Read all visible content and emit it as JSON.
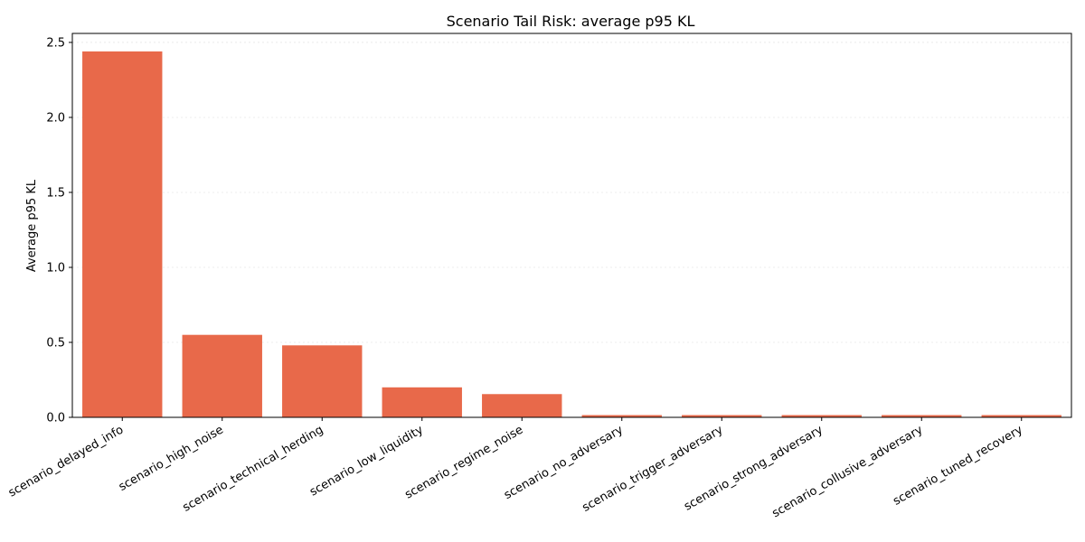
{
  "chart_data": {
    "type": "bar",
    "title": "Scenario Tail Risk: average p95 KL",
    "xlabel": "",
    "ylabel": "Average p95 KL",
    "categories": [
      "scenario_delayed_info",
      "scenario_high_noise",
      "scenario_technical_herding",
      "scenario_low_liquidity",
      "scenario_regime_noise",
      "scenario_no_adversary",
      "scenario_trigger_adversary",
      "scenario_strong_adversary",
      "scenario_collusive_adversary",
      "scenario_tuned_recovery"
    ],
    "values": [
      2.44,
      0.55,
      0.48,
      0.2,
      0.155,
      0.015,
      0.015,
      0.015,
      0.015,
      0.015
    ],
    "ylim": [
      0,
      2.56
    ],
    "yticks": [
      "0.0",
      "0.5",
      "1.0",
      "1.5",
      "2.0",
      "2.5"
    ],
    "ytick_values": [
      0,
      0.5,
      1.0,
      1.5,
      2.0,
      2.5
    ],
    "grid": true,
    "bar_color": "#e8694a"
  }
}
